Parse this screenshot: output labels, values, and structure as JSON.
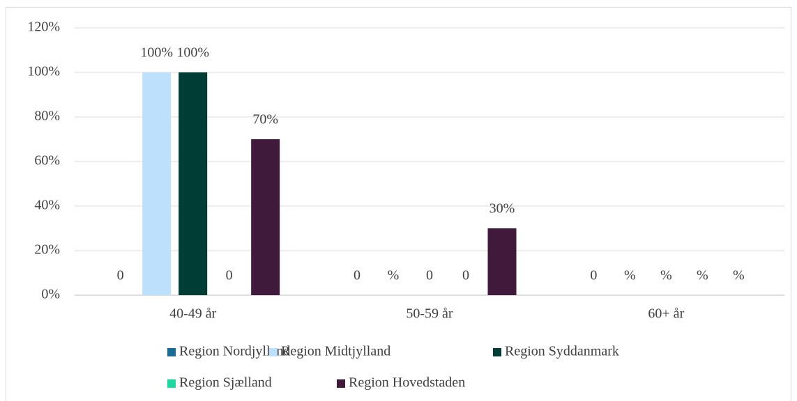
{
  "chart_data": {
    "type": "bar",
    "categories": [
      "40-49 år",
      "50-59 år",
      "60+ år"
    ],
    "series": [
      {
        "name": "Region Nordjylland",
        "color": "#1b6b96",
        "values": [
          0,
          0,
          0
        ],
        "value_labels": [
          "0",
          "0",
          "0"
        ]
      },
      {
        "name": "Region Midtjylland",
        "color": "#bde0fc",
        "values": [
          100,
          null,
          null
        ],
        "value_labels": [
          "100%",
          "%",
          "%"
        ]
      },
      {
        "name": "Region Syddanmark",
        "color": "#003d35",
        "values": [
          100,
          0,
          null
        ],
        "value_labels": [
          "100%",
          "0",
          "%"
        ]
      },
      {
        "name": "Region Sjælland",
        "color": "#1bd9a0",
        "values": [
          0,
          0,
          null
        ],
        "value_labels": [
          "0",
          "0",
          "%"
        ]
      },
      {
        "name": "Region Hovedstaden",
        "color": "#3f1a3b",
        "values": [
          70,
          30,
          null
        ],
        "value_labels": [
          "70%",
          "30%",
          "%"
        ]
      }
    ],
    "ylim": [
      0,
      120
    ],
    "yticks": [
      {
        "value": 0,
        "label": "0%"
      },
      {
        "value": 20,
        "label": "20%"
      },
      {
        "value": 40,
        "label": "40%"
      },
      {
        "value": 60,
        "label": "60%"
      },
      {
        "value": 80,
        "label": "80%"
      },
      {
        "value": 100,
        "label": "100%"
      },
      {
        "value": 120,
        "label": "120%"
      }
    ],
    "grid": true
  }
}
